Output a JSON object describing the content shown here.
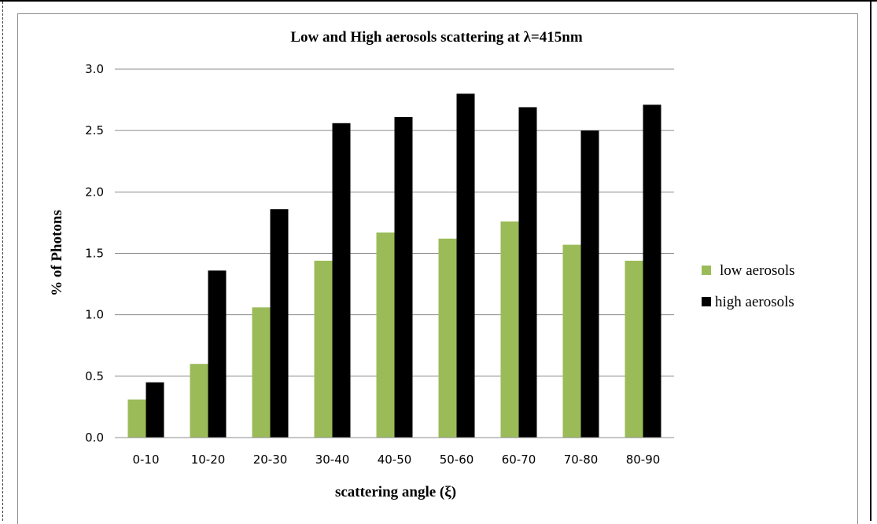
{
  "chart_data": {
    "type": "bar",
    "title": "Low and High aerosols scattering at λ=415nm",
    "xlabel": "scattering angle (ξ)",
    "ylabel": "% of Photons",
    "ylim": [
      0,
      3.0
    ],
    "yticks": [
      "0.0",
      "0.5",
      "1.0",
      "1.5",
      "2.0",
      "2.5",
      "3.0"
    ],
    "categories": [
      "0-10",
      "10-20",
      "20-30",
      "30-40",
      "40-50",
      "50-60",
      "60-70",
      "70-80",
      "80-90"
    ],
    "grid": true,
    "legend_position": "right",
    "series": [
      {
        "name": "low aerosols",
        "color": "#9bbb59",
        "values": [
          0.31,
          0.6,
          1.06,
          1.44,
          1.67,
          1.62,
          1.76,
          1.57,
          1.44
        ]
      },
      {
        "name": "high aerosols",
        "color": "#000000",
        "values": [
          0.45,
          1.36,
          1.86,
          2.56,
          2.61,
          2.8,
          2.69,
          2.5,
          2.71
        ]
      }
    ]
  }
}
